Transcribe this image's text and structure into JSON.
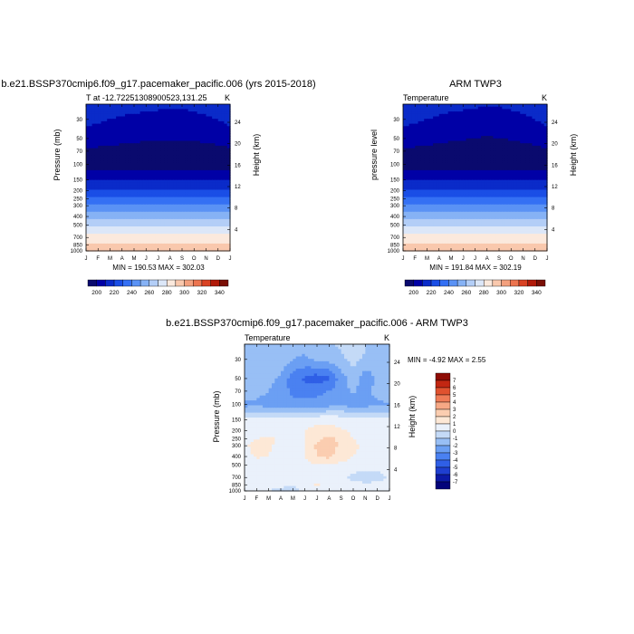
{
  "chart_data": [
    {
      "type": "contour",
      "title": "b.e21.BSSP370cmip6.f09_g17.pacemaker_pacific.006 (yrs 2015-2018)",
      "subtitle_left": "T at -12.72251308900523,131.25",
      "subtitle_right": "K",
      "ylabel": "Pressure (mb)",
      "ylabel_right": "Height (km)",
      "x_ticks": [
        "J",
        "F",
        "M",
        "A",
        "M",
        "J",
        "J",
        "A",
        "S",
        "O",
        "N",
        "D",
        "J"
      ],
      "y_ticks": [
        30,
        50,
        70,
        100,
        150,
        200,
        250,
        300,
        400,
        500,
        700,
        850,
        1000
      ],
      "y_ticks_right": [
        24,
        20,
        16,
        12,
        8,
        4
      ],
      "y_log": true,
      "ylim": [
        1000,
        20
      ],
      "stats": "MIN = 190.53  MAX = 302.03",
      "levels": [
        200,
        210,
        220,
        230,
        240,
        250,
        260,
        270,
        280,
        290,
        300,
        310,
        320,
        330,
        340
      ],
      "colorbar_labels": [
        "200",
        "220",
        "240",
        "260",
        "280",
        "300",
        "320",
        "340"
      ],
      "field": {
        "pressure": [
          20,
          30,
          50,
          70,
          100,
          150,
          200,
          250,
          300,
          400,
          500,
          700,
          850,
          1000
        ],
        "monthly_pattern": "annual cycle: cold layer near 70-100 mb, warm near surface",
        "values": [
          [
            216,
            215,
            214,
            213,
            213,
            212,
            212,
            211,
            211,
            212,
            213,
            214,
            216
          ],
          [
            212,
            211,
            210,
            209,
            208,
            208,
            207,
            207,
            207,
            208,
            209,
            210,
            212
          ],
          [
            207,
            206,
            205,
            204,
            203,
            202,
            201,
            201,
            201,
            202,
            203,
            205,
            207
          ],
          [
            197,
            197,
            196,
            195,
            194,
            193,
            192,
            191,
            191,
            193,
            194,
            196,
            197
          ],
          [
            195,
            195,
            195,
            195,
            195,
            195,
            195,
            195,
            195,
            195,
            195,
            195,
            195
          ],
          [
            211,
            211,
            211,
            211,
            211,
            211,
            211,
            211,
            211,
            211,
            211,
            211,
            211
          ],
          [
            221,
            221,
            221,
            221,
            221,
            221,
            221,
            221,
            221,
            221,
            221,
            221,
            221
          ],
          [
            232,
            232,
            232,
            232,
            232,
            232,
            232,
            232,
            232,
            232,
            232,
            232,
            232
          ],
          [
            242,
            242,
            242,
            242,
            242,
            242,
            242,
            242,
            242,
            242,
            242,
            242,
            242
          ],
          [
            258,
            258,
            258,
            258,
            258,
            258,
            258,
            258,
            258,
            258,
            258,
            258,
            258
          ],
          [
            268,
            268,
            268,
            268,
            268,
            268,
            268,
            268,
            268,
            268,
            268,
            268,
            268
          ],
          [
            283,
            283,
            283,
            283,
            283,
            283,
            283,
            283,
            283,
            283,
            283,
            283,
            283
          ],
          [
            292,
            292,
            292,
            292,
            292,
            292,
            292,
            292,
            292,
            292,
            292,
            292,
            292
          ],
          [
            300,
            300,
            300,
            300,
            300,
            300,
            300,
            300,
            300,
            300,
            300,
            300,
            300
          ]
        ]
      }
    },
    {
      "type": "contour",
      "title": "ARM TWP3",
      "subtitle_left": "Temperature",
      "subtitle_right": "K",
      "ylabel": "pressure level",
      "ylabel_right": "Height (km)",
      "x_ticks": [
        "J",
        "F",
        "M",
        "A",
        "M",
        "J",
        "J",
        "A",
        "S",
        "O",
        "N",
        "D",
        "J"
      ],
      "y_ticks": [
        30,
        50,
        70,
        100,
        150,
        200,
        250,
        300,
        400,
        500,
        700,
        850,
        1000
      ],
      "y_ticks_right": [
        24,
        20,
        16,
        12,
        8,
        4
      ],
      "y_log": true,
      "ylim": [
        1000,
        20
      ],
      "stats": "MIN = 191.84  MAX = 302.19",
      "levels": [
        200,
        210,
        220,
        230,
        240,
        250,
        260,
        270,
        280,
        290,
        300,
        310,
        320,
        330,
        340
      ],
      "colorbar_labels": [
        "200",
        "220",
        "240",
        "260",
        "280",
        "300",
        "320",
        "340"
      ],
      "field": {
        "pressure": [
          20,
          30,
          50,
          70,
          100,
          150,
          200,
          250,
          300,
          400,
          500,
          700,
          850,
          1000
        ],
        "values": [
          [
            216,
            215,
            214,
            213,
            212,
            212,
            211,
            211,
            211,
            212,
            213,
            214,
            216
          ],
          [
            212,
            211,
            210,
            209,
            208,
            207,
            207,
            206,
            206,
            207,
            208,
            210,
            212
          ],
          [
            207,
            206,
            205,
            203,
            202,
            201,
            200,
            199,
            200,
            201,
            203,
            205,
            207
          ],
          [
            198,
            197,
            196,
            195,
            194,
            193,
            192,
            192,
            192,
            193,
            194,
            196,
            198
          ],
          [
            195,
            195,
            195,
            195,
            195,
            195,
            195,
            195,
            195,
            195,
            195,
            195,
            195
          ],
          [
            211,
            211,
            211,
            211,
            211,
            211,
            211,
            211,
            211,
            211,
            211,
            211,
            211
          ],
          [
            221,
            221,
            221,
            221,
            221,
            221,
            221,
            221,
            221,
            221,
            221,
            221,
            221
          ],
          [
            232,
            232,
            232,
            232,
            232,
            232,
            232,
            232,
            232,
            232,
            232,
            232,
            232
          ],
          [
            242,
            242,
            242,
            242,
            242,
            242,
            242,
            242,
            242,
            242,
            242,
            242,
            242
          ],
          [
            258,
            258,
            258,
            258,
            258,
            258,
            258,
            258,
            258,
            258,
            258,
            258,
            258
          ],
          [
            268,
            268,
            268,
            268,
            268,
            268,
            268,
            268,
            268,
            268,
            268,
            268,
            268
          ],
          [
            283,
            283,
            283,
            283,
            283,
            283,
            283,
            283,
            283,
            283,
            283,
            283,
            283
          ],
          [
            292,
            292,
            292,
            292,
            292,
            292,
            292,
            292,
            292,
            292,
            292,
            292,
            292
          ],
          [
            300,
            300,
            300,
            300,
            300,
            300,
            300,
            300,
            300,
            300,
            300,
            300,
            300
          ]
        ]
      }
    },
    {
      "type": "contour",
      "title": "b.e21.BSSP370cmip6.f09_g17.pacemaker_pacific.006 - ARM TWP3",
      "subtitle_left": "Temperature",
      "subtitle_right": "K",
      "ylabel": "Pressure (mb)",
      "ylabel_right": "Height (km)",
      "x_ticks": [
        "J",
        "F",
        "M",
        "A",
        "M",
        "J",
        "J",
        "A",
        "S",
        "O",
        "N",
        "D",
        "J"
      ],
      "y_ticks": [
        30,
        50,
        70,
        100,
        150,
        200,
        250,
        300,
        400,
        500,
        700,
        850,
        1000
      ],
      "y_ticks_right": [
        24,
        20,
        16,
        12,
        8,
        4
      ],
      "y_log": true,
      "ylim": [
        1000,
        20
      ],
      "stats": "MIN =  -4.92 MAX =   2.55",
      "levels": [
        -7,
        -6,
        -5,
        -4,
        -3,
        -2,
        -1,
        0,
        1,
        2,
        3,
        4,
        5,
        6,
        7
      ],
      "colorbar_labels": [
        "7",
        "6",
        "5",
        "4",
        "3",
        "2",
        "1",
        "0",
        "-1",
        "-2",
        "-3",
        "-4",
        "-5",
        "-6",
        "-7"
      ],
      "field": {
        "pressure": [
          20,
          30,
          50,
          70,
          100,
          150,
          200,
          250,
          300,
          400,
          500,
          700,
          850,
          1000
        ],
        "values": [
          [
            -1.5,
            -1.6,
            -1.2,
            -1.0,
            -1.5,
            -1.6,
            -1.5,
            -1.2,
            -0.8,
            -0.4,
            -0.9,
            -1.6,
            -1.6
          ],
          [
            -1.5,
            -1.7,
            -1.3,
            -1.4,
            -2.0,
            -2.2,
            -1.8,
            -1.6,
            -1.2,
            -0.6,
            -1.2,
            -1.8,
            -1.6
          ],
          [
            -1.4,
            -1.8,
            -1.6,
            -2.2,
            -3.6,
            -4.2,
            -4.6,
            -4.2,
            -2.4,
            -1.6,
            -2.6,
            -1.8,
            -1.4
          ],
          [
            -1.2,
            -1.6,
            -2.0,
            -2.6,
            -3.2,
            -3.4,
            -3.2,
            -3.0,
            -2.4,
            -1.8,
            -2.4,
            -1.6,
            -1.0
          ],
          [
            -2.4,
            -2.2,
            -2.6,
            -2.6,
            -2.8,
            -2.6,
            -2.8,
            -2.4,
            -2.2,
            -2.6,
            -2.4,
            -2.2,
            -2.2
          ],
          [
            0.3,
            0.4,
            0.5,
            0.5,
            0.6,
            0.7,
            0.8,
            0.8,
            0.6,
            0.4,
            0.3,
            0.3,
            0.3
          ],
          [
            0.6,
            0.7,
            0.8,
            0.8,
            0.9,
            1.0,
            1.2,
            1.3,
            1.1,
            0.8,
            0.6,
            0.5,
            0.6
          ],
          [
            0.8,
            1.0,
            1.1,
            0.9,
            0.8,
            1.0,
            1.6,
            2.4,
            1.6,
            1.0,
            0.7,
            0.6,
            0.7
          ],
          [
            0.9,
            1.2,
            1.1,
            0.8,
            0.7,
            1.0,
            2.2,
            2.5,
            1.8,
            1.2,
            0.8,
            0.6,
            0.7
          ],
          [
            0.8,
            1.1,
            1.0,
            0.6,
            0.6,
            1.0,
            2.0,
            2.3,
            1.4,
            1.0,
            0.8,
            0.6,
            0.6
          ],
          [
            0.4,
            0.6,
            0.6,
            0.4,
            0.4,
            0.6,
            1.0,
            1.0,
            0.8,
            0.6,
            0.5,
            0.5,
            0.5
          ],
          [
            0.2,
            0.2,
            0.1,
            0.0,
            0.1,
            0.3,
            0.5,
            0.6,
            0.2,
            -0.3,
            -0.6,
            -0.4,
            0.1
          ],
          [
            0.3,
            0.2,
            0.1,
            0.2,
            0.0,
            0.4,
            1.1,
            0.4,
            0.3,
            0.5,
            0.2,
            0.3,
            0.2
          ],
          [
            0.1,
            0.0,
            0.0,
            -0.2,
            -0.3,
            0.2,
            0.3,
            0.2,
            0.6,
            0.8,
            0.4,
            0.1,
            0.1
          ]
        ]
      }
    }
  ],
  "colors": {
    "temp_palette": [
      "#0a0a6e",
      "#0000a6",
      "#0a2bc9",
      "#1a4ee6",
      "#3470f4",
      "#5a92f5",
      "#86b2f5",
      "#b3cef7",
      "#dce7f8",
      "#fbe9dd",
      "#f9c8ad",
      "#f3a07e",
      "#ec744f",
      "#d94223",
      "#b11a09",
      "#7a0f05"
    ],
    "diff_palette": [
      "#03037a",
      "#0c1aa6",
      "#1f3fd0",
      "#2f5fe6",
      "#4a81f1",
      "#6b9ff3",
      "#98bff5",
      "#c4daf7",
      "#eaf1fb",
      "#fde8d6",
      "#fbcdb0",
      "#f6a885",
      "#ef7c57",
      "#e0522f",
      "#c22712",
      "#8e0c05"
    ]
  }
}
